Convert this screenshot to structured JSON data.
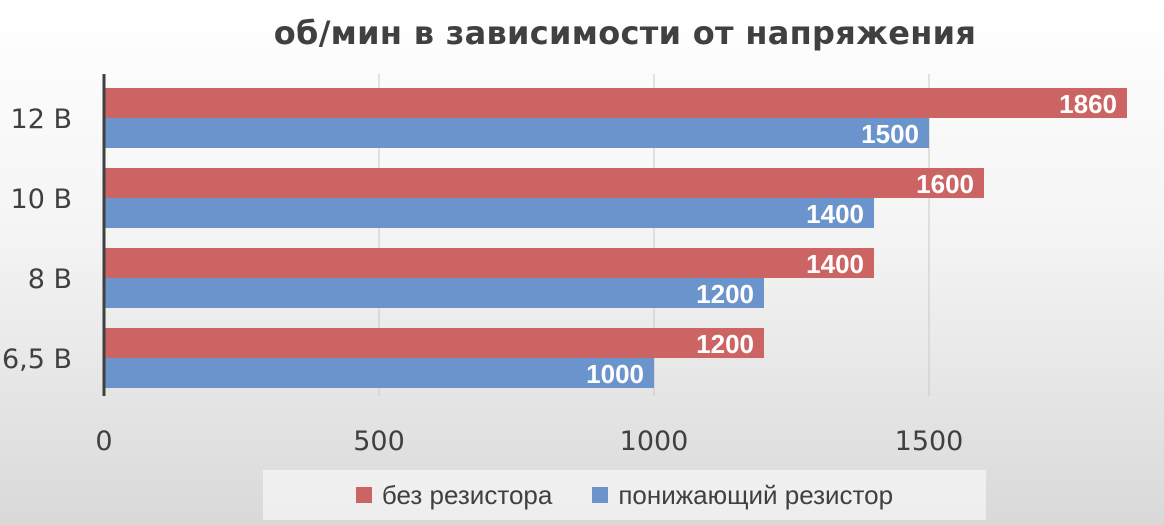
{
  "chart_data": {
    "type": "bar",
    "orientation": "horizontal",
    "title": "об/мин в зависимости от напряжения",
    "xlabel": "",
    "ylabel": "",
    "categories": [
      "12 В",
      "10 В",
      "8 В",
      "6,5 В"
    ],
    "series": [
      {
        "name": "без резистора",
        "color": "#cd6464",
        "values": [
          1860,
          1600,
          1400,
          1200
        ],
        "labels": [
          "1860",
          "1600",
          "1400",
          "1200"
        ]
      },
      {
        "name": "понижающий резистор",
        "color": "#6b93cc",
        "values": [
          1500,
          1400,
          1200,
          1000
        ],
        "labels": [
          "1500",
          "1400",
          "1200",
          "1000"
        ]
      }
    ],
    "xlim": [
      0,
      1860
    ],
    "xticks": [
      0,
      500,
      1000,
      1500
    ],
    "xtick_labels": [
      "0",
      "500",
      "1000",
      "1500"
    ],
    "grid": "vertical",
    "legend": "bottom"
  }
}
